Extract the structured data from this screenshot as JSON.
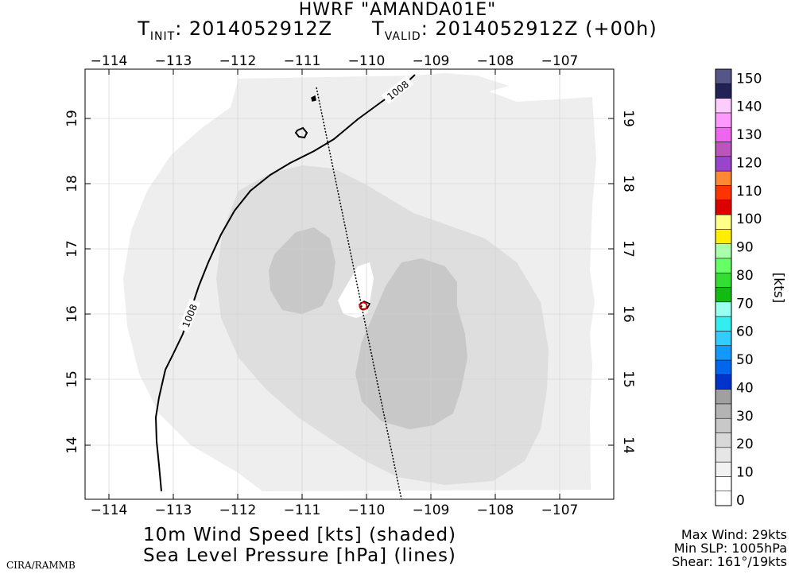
{
  "title": "HWRF \"AMANDA01E\"",
  "init_label": "T",
  "init_sub": "INIT",
  "init_value": ": 2014052912Z",
  "valid_label": "T",
  "valid_sub": "VALID",
  "valid_value": ": 2014052912Z (+00h)",
  "bottom_line1": "10m Wind Speed [kts] (shaded)",
  "bottom_line2": "Sea Level Pressure [hPa] (lines)",
  "credit": "CIRA/RAMMB",
  "stats": {
    "max_wind": "Max Wind:    29kts",
    "min_slp": "Min SLP: 1005hPa",
    "shear": "Shear: 161°/19kts"
  },
  "map": {
    "lon_labels": [
      "−114",
      "−113",
      "−112",
      "−111",
      "−110",
      "−109",
      "−108",
      "−107"
    ],
    "lat_labels": [
      "14",
      "15",
      "16",
      "17",
      "18",
      "19"
    ],
    "isobar_label": "1008",
    "storm_center": {
      "lon": -110.0,
      "lat": 16.1
    }
  },
  "colorbar": {
    "unit_label": "[kts]",
    "ticks": [
      "0",
      "10",
      "20",
      "30",
      "40",
      "50",
      "60",
      "70",
      "80",
      "90",
      "100",
      "110",
      "120",
      "130",
      "140",
      "150"
    ],
    "colors": [
      "#ffffff",
      "#ffffff",
      "#f2f2f2",
      "#e6e6e6",
      "#d8d8d8",
      "#c8c8c8",
      "#b4b4b4",
      "#a0a0a0",
      "#0033cc",
      "#0066ee",
      "#1199ff",
      "#33ccff",
      "#33eeee",
      "#99ffee",
      "#11bb11",
      "#33dd33",
      "#66ff66",
      "#aaffaa",
      "#ffee00",
      "#ffff88",
      "#dd0000",
      "#ff3300",
      "#ff8833",
      "#9944cc",
      "#bb55bb",
      "#ee66ee",
      "#ff99ff",
      "#ffccff",
      "#222255",
      "#555588"
    ]
  }
}
